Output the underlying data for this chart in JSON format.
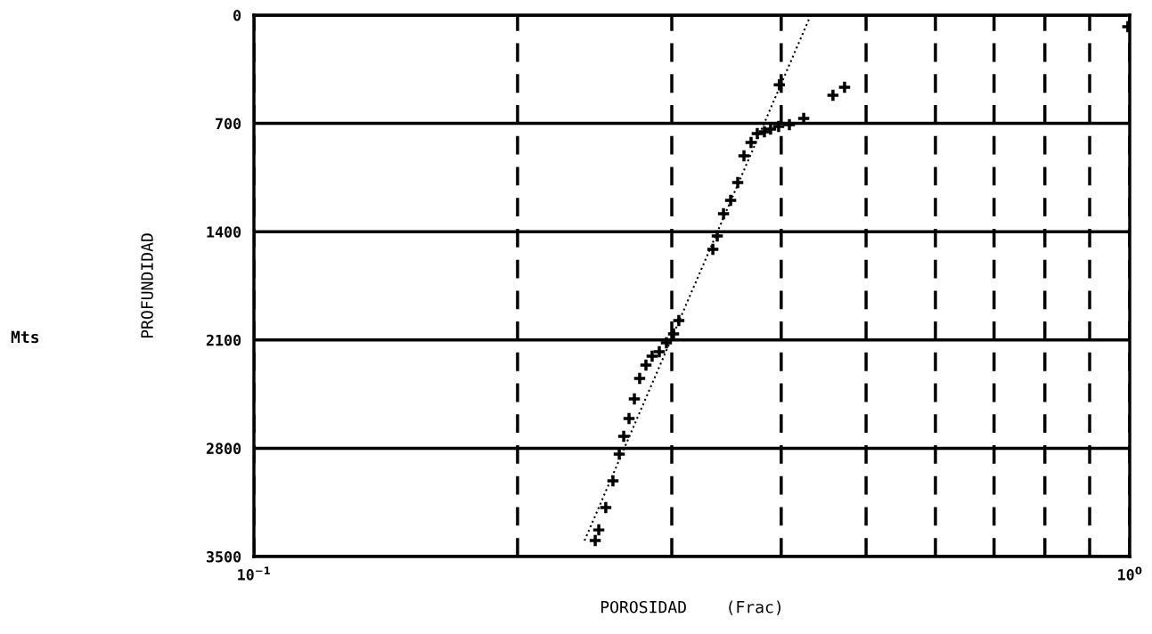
{
  "chart_data": {
    "type": "scatter",
    "xlabel": "POROSIDAD    (Frac)",
    "ylabel": "PROFUNDIDAD",
    "annotations": [
      "Mts"
    ],
    "log": "x",
    "xlim": [
      0.1,
      1.0
    ],
    "ylim": [
      3500,
      0
    ],
    "xticks": [
      {
        "value": 0.1,
        "label": "10$^{−1}$"
      },
      {
        "value": 0.2,
        "label": null
      },
      {
        "value": 0.3,
        "label": null
      },
      {
        "value": 0.4,
        "label": null
      },
      {
        "value": 0.5,
        "label": null
      },
      {
        "value": 0.6,
        "label": null
      },
      {
        "value": 0.7,
        "label": null
      },
      {
        "value": 0.8,
        "label": null
      },
      {
        "value": 0.9,
        "label": null
      },
      {
        "value": 1.0,
        "label": "10$^{0}$"
      }
    ],
    "yticks": [
      0,
      700,
      1400,
      2100,
      2800,
      3500
    ],
    "grid": true,
    "marker": "cross",
    "series": [
      {
        "color": "#000000",
        "x": [
          0.2453,
          0.2476,
          0.2522,
          0.257,
          0.2613,
          0.2644,
          0.2681,
          0.2719,
          0.2757,
          0.2803,
          0.2849,
          0.2903,
          0.2958,
          0.3014,
          0.3056,
          0.3342,
          0.3381,
          0.3437,
          0.3502,
          0.3568,
          0.3627,
          0.3695,
          0.3756,
          0.3827,
          0.389,
          0.3973,
          0.4087,
          0.4244,
          0.4583,
          0.4725,
          0.398,
          0.995
        ],
        "values": [
          3397,
          3328,
          3184,
          3011,
          2838,
          2723,
          2608,
          2481,
          2349,
          2262,
          2205,
          2176,
          2119,
          2061,
          1975,
          1514,
          1428,
          1284,
          1197,
          1082,
          910,
          823,
          766,
          754,
          737,
          720,
          708,
          668,
          518,
          466,
          450,
          75
        ]
      },
      {
        "type": "line",
        "line_style": "dotted",
        "marker": "none",
        "color": "#000000",
        "x": [
          0.2385,
          0.4323
        ],
        "values": [
          3397,
          0
        ]
      }
    ]
  }
}
